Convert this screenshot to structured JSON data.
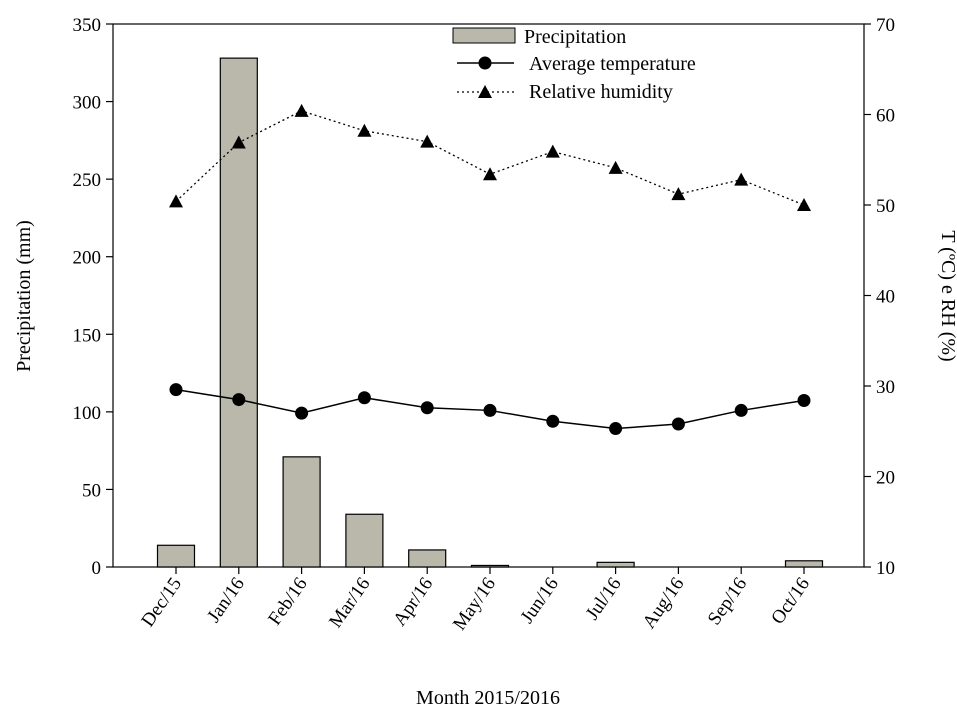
{
  "chart_data": {
    "type": "bar",
    "categories": [
      "Dec/15",
      "Jan/16",
      "Feb/16",
      "Mar/16",
      "Apr/16",
      "May/16",
      "Jun/16",
      "Jul/16",
      "Aug/16",
      "Sep/16",
      "Oct/16"
    ],
    "xlabel": "Month 2015/2016",
    "ylabel": "Precipitation (mm)",
    "y2label": "T (ºC) e RH (%)",
    "ylim": [
      0,
      350
    ],
    "y2lim": [
      10,
      70
    ],
    "yticks": [
      0,
      50,
      100,
      150,
      200,
      250,
      300,
      350
    ],
    "y2ticks": [
      10,
      20,
      30,
      40,
      50,
      60,
      70
    ],
    "grid": false,
    "legend_position": "top-center",
    "series": [
      {
        "name": "Precipitation",
        "type": "bar",
        "axis": "left",
        "color": "#b9b8ab",
        "values": [
          14,
          328,
          71,
          34,
          11,
          1,
          0,
          3,
          0,
          0,
          4
        ]
      },
      {
        "name": "Average temperature",
        "type": "line",
        "axis": "right",
        "marker": "circle",
        "line_style": "solid",
        "color": "#000000",
        "values": [
          29.6,
          28.5,
          27.0,
          28.7,
          27.6,
          27.3,
          26.1,
          25.3,
          25.8,
          27.3,
          28.4
        ]
      },
      {
        "name": "Relative humidity",
        "type": "line",
        "axis": "right",
        "marker": "triangle",
        "line_style": "dotted",
        "color": "#000000",
        "values": [
          50.4,
          56.9,
          60.4,
          58.2,
          57.0,
          53.4,
          55.9,
          54.1,
          51.2,
          52.8,
          50.0
        ]
      }
    ]
  }
}
